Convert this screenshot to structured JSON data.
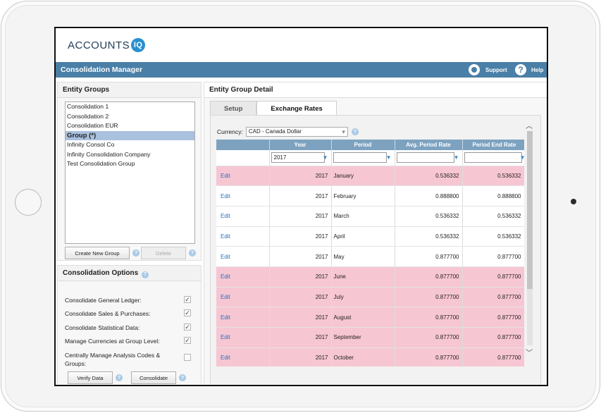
{
  "app": {
    "logo_text": "ACCOUNTS",
    "logo_badge": "IQ",
    "title": "Consolidation Manager",
    "support_label": "Support",
    "help_label": "Help"
  },
  "entity_groups": {
    "heading": "Entity Groups",
    "items": [
      "Consolidation 1",
      "Consolidation 2",
      "Consolidation EUR",
      "Group (*)",
      "Infinity Consol Co",
      "Infinity Consolidation Company",
      "Test Consolidation Group"
    ],
    "selected_index": 3,
    "create_label": "Create New Group",
    "delete_label": "Delete"
  },
  "consolidation_options": {
    "heading": "Consolidation Options",
    "options": [
      {
        "label": "Consolidate General Ledger:",
        "checked": true
      },
      {
        "label": "Consolidate Sales & Purchases:",
        "checked": true
      },
      {
        "label": "Consolidate Statistical Data:",
        "checked": true
      },
      {
        "label": "Manage Currencies at Group Level:",
        "checked": true
      },
      {
        "label": "Centrally Manage Analysis Codes & Groups:",
        "checked": false
      }
    ],
    "verify_label": "Verify Data",
    "consolidate_label": "Consolidate"
  },
  "detail": {
    "heading": "Entity Group Detail",
    "tabs": [
      {
        "label": "Setup",
        "active": false
      },
      {
        "label": "Exchange Rates",
        "active": true
      }
    ],
    "currency_label": "Currency:",
    "currency_value": "CAD - Canada Dollar",
    "columns": [
      "",
      "Year",
      "Period",
      "Avg. Period Rate",
      "Period End Rate"
    ],
    "year_filter": "2017",
    "edit_label": "Edit",
    "rows": [
      {
        "year": "2017",
        "period": "January",
        "avg": "0.536332",
        "end": "0.536332",
        "highlight": true
      },
      {
        "year": "2017",
        "period": "February",
        "avg": "0.888800",
        "end": "0.888800",
        "highlight": false
      },
      {
        "year": "2017",
        "period": "March",
        "avg": "0.536332",
        "end": "0.536332",
        "highlight": false
      },
      {
        "year": "2017",
        "period": "April",
        "avg": "0.536332",
        "end": "0.536332",
        "highlight": false
      },
      {
        "year": "2017",
        "period": "May",
        "avg": "0.877700",
        "end": "0.877700",
        "highlight": false
      },
      {
        "year": "2017",
        "period": "June",
        "avg": "0.877700",
        "end": "0.877700",
        "highlight": true
      },
      {
        "year": "2017",
        "period": "July",
        "avg": "0.877700",
        "end": "0.877700",
        "highlight": true
      },
      {
        "year": "2017",
        "period": "August",
        "avg": "0.877700",
        "end": "0.877700",
        "highlight": true
      },
      {
        "year": "2017",
        "period": "September",
        "avg": "0.877700",
        "end": "0.877700",
        "highlight": true
      },
      {
        "year": "2017",
        "period": "October",
        "avg": "0.877700",
        "end": "0.877700",
        "highlight": true
      }
    ]
  }
}
